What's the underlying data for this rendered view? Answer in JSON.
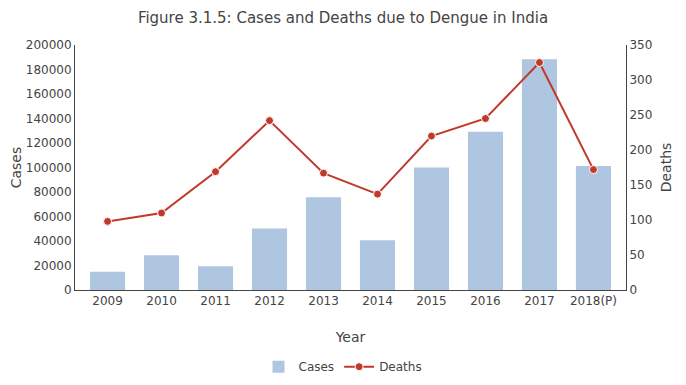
{
  "chart_data": {
    "type": "bar",
    "title": "Figure 3.1.5: Cases and Deaths due to Dengue in India",
    "xlabel": "Year",
    "ylabel": "Cases",
    "y2label": "Deaths",
    "categories": [
      "2009",
      "2010",
      "2011",
      "2012",
      "2013",
      "2014",
      "2015",
      "2016",
      "2017",
      "2018(P)"
    ],
    "series": [
      {
        "name": "Cases",
        "type": "bar",
        "color": "#aec6e0",
        "values": [
          15000,
          28300,
          19300,
          50222,
          75808,
          40571,
          99913,
          129166,
          188401,
          101192
        ]
      },
      {
        "name": "Deaths",
        "type": "line",
        "axis": "y2",
        "color": "#c0392b",
        "marker": "circle",
        "values": [
          98,
          110,
          169,
          242,
          167,
          137,
          220,
          245,
          325,
          172
        ]
      }
    ],
    "ylim": [
      0,
      200000
    ],
    "yticks": [
      0,
      20000,
      40000,
      60000,
      80000,
      100000,
      120000,
      140000,
      160000,
      180000,
      200000
    ],
    "y2lim": [
      0,
      350
    ],
    "y2ticks": [
      0,
      50,
      100,
      150,
      200,
      250,
      300,
      350
    ],
    "grid": false,
    "legend": "bottom"
  }
}
